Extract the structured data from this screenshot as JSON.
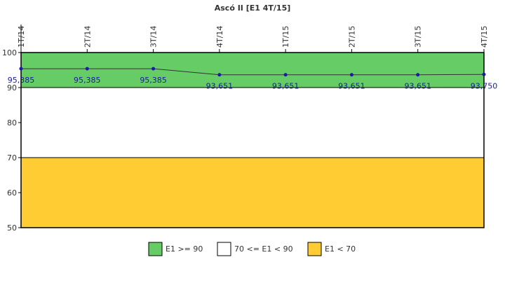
{
  "chart_data": {
    "type": "line",
    "title": "Ascó II [E1 4T/15]",
    "categories": [
      "1T/14",
      "2T/14",
      "3T/14",
      "4T/14",
      "1T/15",
      "2T/15",
      "3T/15",
      "4T/15"
    ],
    "series": [
      {
        "values": [
          95.385,
          95.385,
          95.385,
          93.651,
          93.651,
          93.651,
          93.651,
          93.75
        ],
        "labels": [
          "95,385",
          "95,385",
          "95,385",
          "93,651",
          "93,651",
          "93,651",
          "93,651",
          "93,750"
        ],
        "color": "#1a1aa6"
      }
    ],
    "ylim": [
      50,
      100
    ],
    "yticks": [
      50,
      60,
      70,
      80,
      90,
      100
    ],
    "bands": [
      {
        "from": 90,
        "to": 100,
        "color": "#66cc66",
        "legend": "E1 >= 90"
      },
      {
        "from": 70,
        "to": 90,
        "color": "#ffffff",
        "legend": "70 <= E1 < 90"
      },
      {
        "from": 50,
        "to": 70,
        "color": "#ffcc33",
        "legend": "E1 < 70"
      }
    ],
    "grid": false,
    "legend_position": "bottom"
  }
}
